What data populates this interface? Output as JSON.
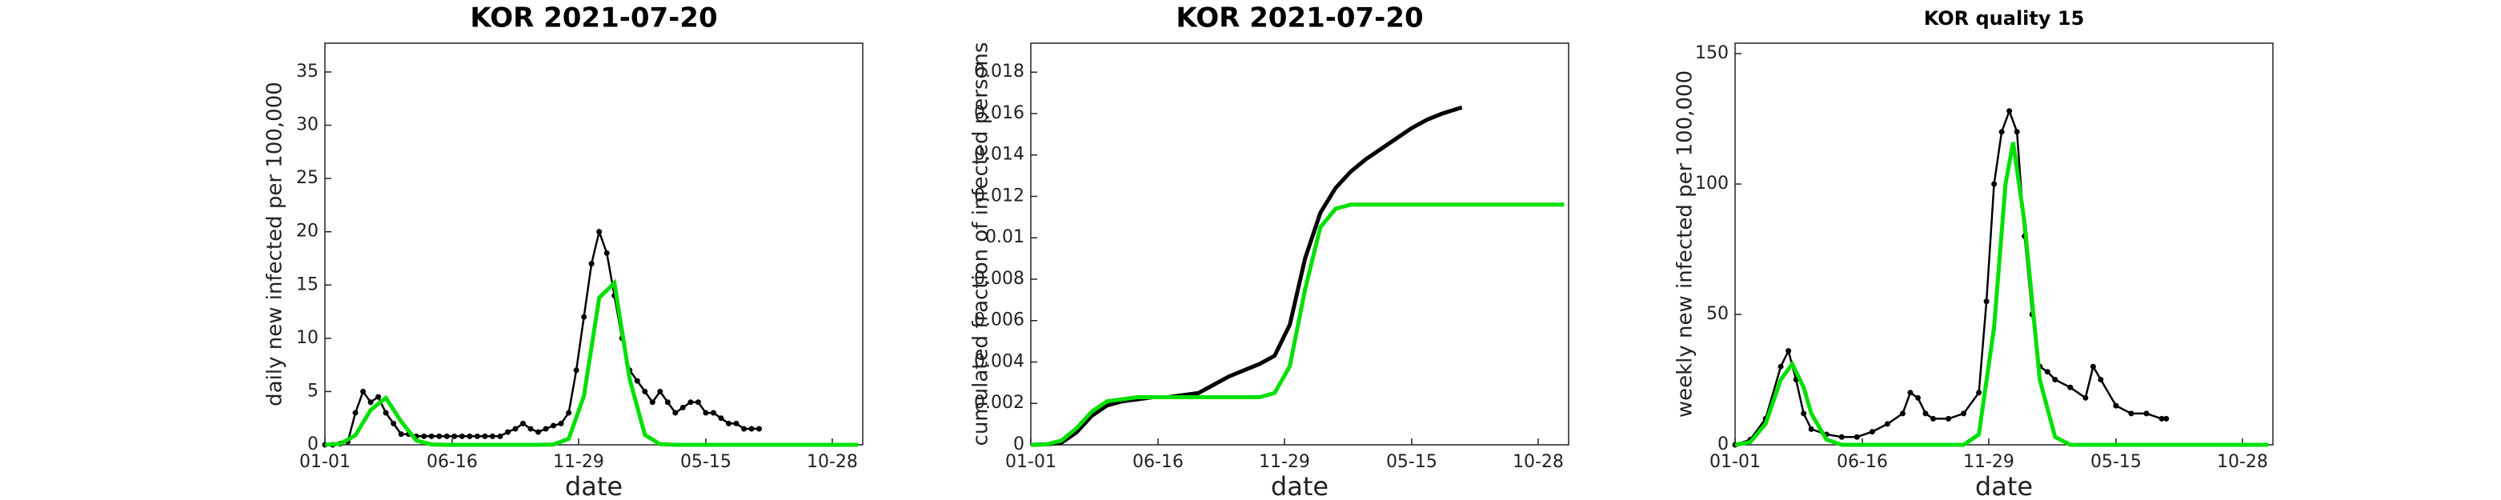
{
  "chart_data": [
    {
      "type": "line",
      "title": "KOR   2021-07-20",
      "xlabel": "date",
      "ylabel": "daily new infected per 100,000",
      "xlim": [
        0,
        706
      ],
      "xticks": [
        {
          "value": 0,
          "label": "01-01"
        },
        {
          "value": 167,
          "label": "06-16"
        },
        {
          "value": 333,
          "label": "11-29"
        },
        {
          "value": 500,
          "label": "05-15"
        },
        {
          "value": 666,
          "label": "10-28"
        }
      ],
      "ylim": [
        0,
        37.7
      ],
      "yticks": [
        0,
        5,
        10,
        15,
        20,
        25,
        30,
        35
      ],
      "series": [
        {
          "color": "#000000",
          "markers": true,
          "x": [
            0,
            10,
            20,
            30,
            40,
            50,
            60,
            70,
            80,
            90,
            100,
            110,
            120,
            130,
            140,
            150,
            160,
            170,
            180,
            190,
            200,
            210,
            220,
            230,
            240,
            250,
            260,
            270,
            280,
            290,
            300,
            310,
            320,
            330,
            340,
            350,
            360,
            370,
            380,
            390,
            400,
            410,
            420,
            430,
            440,
            450,
            460,
            470,
            480,
            490,
            500,
            510,
            520,
            530,
            540,
            550,
            560,
            570
          ],
          "values": [
            0,
            0,
            0.1,
            0.3,
            3,
            5,
            4,
            4.5,
            3,
            2,
            1,
            1,
            0.8,
            0.8,
            0.8,
            0.8,
            0.8,
            0.8,
            0.8,
            0.8,
            0.8,
            0.8,
            0.8,
            0.8,
            1.2,
            1.5,
            2,
            1.5,
            1.2,
            1.5,
            1.8,
            2,
            3,
            7,
            12,
            17,
            20,
            18,
            14,
            10,
            7,
            6,
            5,
            4,
            5,
            4,
            3,
            3.5,
            4,
            4,
            3,
            3,
            2.5,
            2,
            2,
            1.5,
            1.5,
            1.5
          ]
        },
        {
          "color": "#00e000",
          "markers": false,
          "x": [
            0,
            20,
            40,
            60,
            80,
            100,
            120,
            140,
            160,
            180,
            200,
            220,
            240,
            260,
            280,
            300,
            320,
            340,
            360,
            380,
            400,
            420,
            440,
            460,
            480,
            500,
            520,
            540,
            560,
            580,
            600,
            620,
            640,
            660,
            680,
            700
          ],
          "values": [
            0,
            0.09,
            0.89,
            3.27,
            4.41,
            2.19,
            0.4,
            0.03,
            0,
            0,
            0,
            0,
            0,
            0,
            0,
            0.03,
            0.56,
            4.58,
            13.8,
            15.2,
            6.19,
            0.93,
            0.05,
            0,
            0,
            0,
            0,
            0,
            0,
            0,
            0,
            0,
            0,
            0,
            0,
            0
          ]
        }
      ]
    },
    {
      "type": "line",
      "title": "KOR   2021-07-20",
      "xlabel": "date",
      "ylabel": "cumulated fraction of infected persons",
      "xlim": [
        0,
        706
      ],
      "xticks": [
        {
          "value": 0,
          "label": "01-01"
        },
        {
          "value": 167,
          "label": "06-16"
        },
        {
          "value": 333,
          "label": "11-29"
        },
        {
          "value": 500,
          "label": "05-15"
        },
        {
          "value": 666,
          "label": "10-28"
        }
      ],
      "ylim": [
        0,
        0.0194
      ],
      "yticks": [
        0,
        0.002,
        0.004,
        0.006,
        0.008,
        0.01,
        0.012,
        0.014,
        0.016,
        0.018
      ],
      "series": [
        {
          "color": "#000000",
          "markers": false,
          "x": [
            0,
            20,
            40,
            60,
            80,
            100,
            120,
            140,
            160,
            180,
            200,
            220,
            240,
            260,
            280,
            300,
            320,
            340,
            360,
            380,
            400,
            420,
            440,
            460,
            480,
            500,
            520,
            540,
            566
          ],
          "values": [
            0,
            2e-05,
            0.0001,
            0.0006,
            0.0014,
            0.0019,
            0.0021,
            0.0022,
            0.0023,
            0.0023,
            0.0024,
            0.0025,
            0.0029,
            0.0033,
            0.0036,
            0.0039,
            0.0043,
            0.0058,
            0.009,
            0.0112,
            0.0124,
            0.0132,
            0.0138,
            0.0143,
            0.0148,
            0.0153,
            0.0157,
            0.016,
            0.0163
          ]
        },
        {
          "color": "#00e000",
          "markers": false,
          "x": [
            0,
            20,
            40,
            60,
            80,
            100,
            120,
            140,
            300,
            320,
            340,
            360,
            380,
            400,
            420,
            700
          ],
          "values": [
            0,
            2e-05,
            0.0002,
            0.0008,
            0.0016,
            0.0021,
            0.0022,
            0.0023,
            0.0023,
            0.0025,
            0.0038,
            0.0075,
            0.0105,
            0.0114,
            0.0116,
            0.0116
          ]
        }
      ]
    },
    {
      "type": "line",
      "title": "KOR  quality 15",
      "xlabel": "date",
      "ylabel": "weekly new infected per 100,000",
      "xlim": [
        0,
        706
      ],
      "xticks": [
        {
          "value": 0,
          "label": "01-01"
        },
        {
          "value": 167,
          "label": "06-16"
        },
        {
          "value": 333,
          "label": "11-29"
        },
        {
          "value": 500,
          "label": "05-15"
        },
        {
          "value": 666,
          "label": "10-28"
        }
      ],
      "ylim": [
        0,
        154
      ],
      "yticks": [
        0,
        50,
        100,
        150
      ],
      "series": [
        {
          "color": "#000000",
          "markers": true,
          "x": [
            0,
            20,
            40,
            60,
            70,
            80,
            90,
            100,
            120,
            140,
            160,
            180,
            200,
            220,
            230,
            240,
            250,
            260,
            280,
            300,
            320,
            330,
            340,
            350,
            360,
            370,
            380,
            390,
            400,
            410,
            420,
            440,
            460,
            470,
            480,
            500,
            520,
            540,
            560,
            566
          ],
          "values": [
            0,
            2,
            10,
            30,
            36,
            25,
            12,
            6,
            4,
            3,
            3,
            5,
            8,
            12,
            20,
            18,
            12,
            10,
            10,
            12,
            20,
            55,
            100,
            120,
            128,
            120,
            80,
            50,
            30,
            28,
            25,
            22,
            18,
            30,
            25,
            15,
            12,
            12,
            10,
            10
          ]
        },
        {
          "color": "#00e000",
          "markers": false,
          "x": [
            0,
            20,
            40,
            60,
            75,
            90,
            100,
            120,
            140,
            300,
            320,
            340,
            355,
            365,
            380,
            400,
            420,
            440,
            700
          ],
          "values": [
            0,
            1,
            8,
            25,
            31,
            22,
            12,
            2,
            0,
            0,
            4,
            45,
            100,
            116,
            85,
            25,
            3,
            0,
            0
          ]
        }
      ]
    }
  ]
}
